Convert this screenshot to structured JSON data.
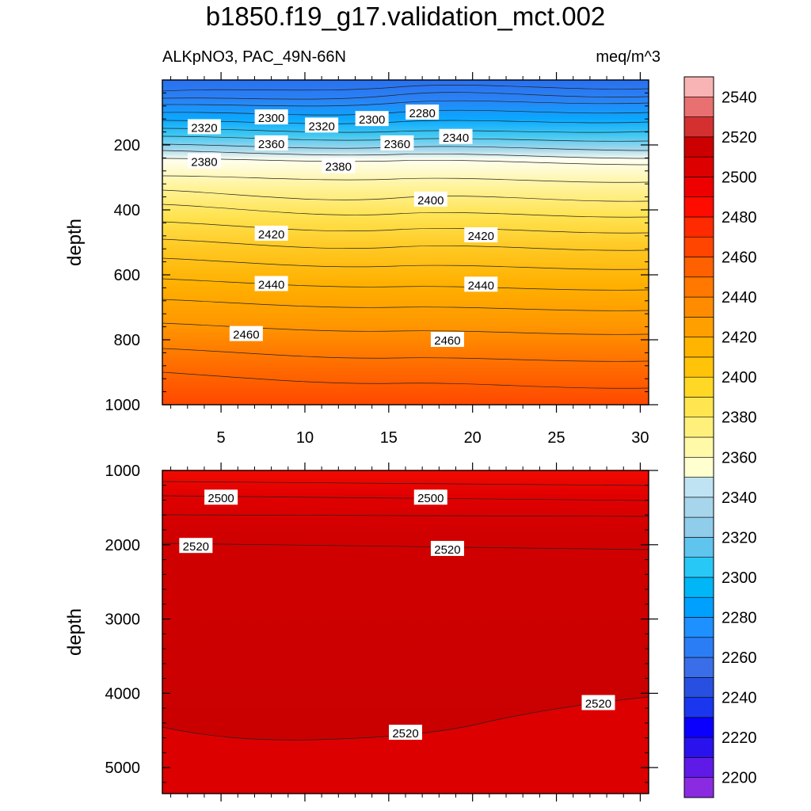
{
  "chart_data": {
    "type": "contour",
    "title": "b1850.f19_g17.validation_mct.002",
    "variable_label": "ALKpNO3, PAC_49N-66N",
    "units_label": "meq/m^3",
    "ylabel": "depth",
    "x_tick_labels": [
      "5",
      "10",
      "15",
      "20",
      "25",
      "30"
    ],
    "x_ticks": [
      5,
      10,
      15,
      20,
      25,
      30
    ],
    "xlim": [
      1.5,
      30.5
    ],
    "panels": [
      {
        "name": "upper",
        "ylim": [
          0,
          1000
        ],
        "y_ticks": [
          200,
          400,
          600,
          800,
          1000
        ],
        "y_tick_labels": [
          "200",
          "400",
          "600",
          "800",
          "1000"
        ],
        "contour_labels": [
          {
            "text": "2320",
            "x": 4.0,
            "y": 145
          },
          {
            "text": "2300",
            "x": 8.0,
            "y": 115
          },
          {
            "text": "2320",
            "x": 11.0,
            "y": 140
          },
          {
            "text": "2300",
            "x": 14.0,
            "y": 120
          },
          {
            "text": "2280",
            "x": 17.0,
            "y": 100
          },
          {
            "text": "2340",
            "x": 19.0,
            "y": 175
          },
          {
            "text": "2360",
            "x": 8.0,
            "y": 195
          },
          {
            "text": "2360",
            "x": 15.5,
            "y": 195
          },
          {
            "text": "2380",
            "x": 4.0,
            "y": 250
          },
          {
            "text": "2380",
            "x": 12.0,
            "y": 265
          },
          {
            "text": "2400",
            "x": 17.5,
            "y": 368
          },
          {
            "text": "2420",
            "x": 8.0,
            "y": 473
          },
          {
            "text": "2420",
            "x": 20.5,
            "y": 478
          },
          {
            "text": "2440",
            "x": 8.0,
            "y": 628
          },
          {
            "text": "2440",
            "x": 20.5,
            "y": 630
          },
          {
            "text": "2460",
            "x": 6.5,
            "y": 782
          },
          {
            "text": "2460",
            "x": 18.5,
            "y": 800
          }
        ]
      },
      {
        "name": "lower",
        "ylim": [
          1000,
          5350
        ],
        "y_ticks": [
          1000,
          2000,
          3000,
          4000,
          5000
        ],
        "y_tick_labels": [
          "1000",
          "2000",
          "3000",
          "4000",
          "5000"
        ],
        "contour_labels": [
          {
            "text": "2500",
            "x": 5.0,
            "y": 1365
          },
          {
            "text": "2500",
            "x": 17.5,
            "y": 1365
          },
          {
            "text": "2520",
            "x": 3.5,
            "y": 2015
          },
          {
            "text": "2520",
            "x": 18.5,
            "y": 2055
          },
          {
            "text": "2520",
            "x": 16.0,
            "y": 4530
          },
          {
            "text": "2520",
            "x": 27.5,
            "y": 4130
          }
        ]
      }
    ],
    "colorbar": {
      "levels": [
        "2200",
        "2220",
        "2240",
        "2260",
        "2280",
        "2300",
        "2320",
        "2340",
        "2360",
        "2380",
        "2400",
        "2420",
        "2440",
        "2460",
        "2480",
        "2500",
        "2520",
        "2540"
      ],
      "colors": [
        "#8a2be2",
        "#5f1ae8",
        "#2a12ef",
        "#0b00fd",
        "#1a36ee",
        "#2850e0",
        "#3a6ee8",
        "#2a7df5",
        "#1e90ff",
        "#00a0ff",
        "#00b6f7",
        "#28c8f6",
        "#5fc4ee",
        "#8fcdeb",
        "#a7d6ec",
        "#bfe3f2",
        "#ffffd0",
        "#fff9a8",
        "#fff07c",
        "#ffe650",
        "#ffd825",
        "#ffc40a",
        "#ffb400",
        "#ffa000",
        "#ff8c00",
        "#ff7800",
        "#ff6000",
        "#ff4500",
        "#ff2a00",
        "#ff0c00",
        "#ee0000",
        "#dd0000",
        "#cc0000",
        "#d43030",
        "#e87070",
        "#f8b4b4"
      ]
    }
  }
}
